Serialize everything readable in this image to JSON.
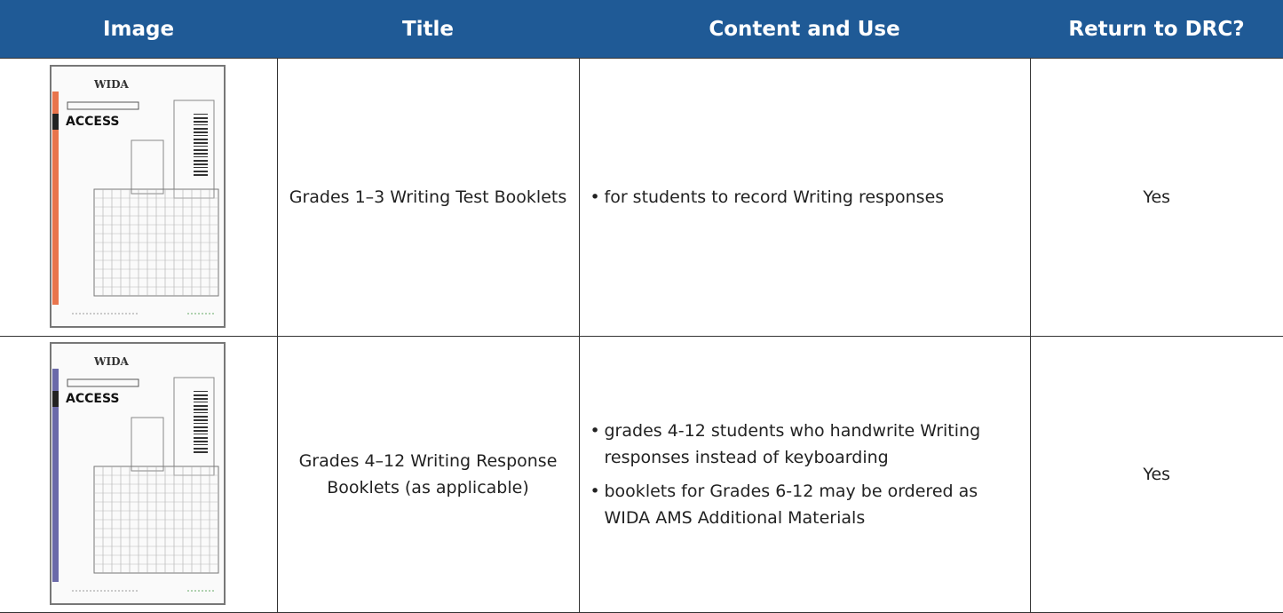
{
  "table": {
    "header": [
      "Image",
      "Title",
      "Content and Use",
      "Return to DRC?"
    ],
    "rows": [
      {
        "image": {
          "brand": "WIDA",
          "product": "ACCESS",
          "stripe_color": "#e8744c"
        },
        "title": "Grades 1–3 Writing Test Booklets",
        "content": [
          "for students to record Writing responses"
        ],
        "return": "Yes"
      },
      {
        "image": {
          "brand": "WIDA",
          "product": "ACCESS",
          "stripe_color": "#6b6aa9"
        },
        "title": "Grades 4–12 Writing Response Booklets (as applicable)",
        "content": [
          "grades 4-12 students who handwrite Writing responses instead of keyboarding",
          "booklets for Grades 6-12 may be ordered as WIDA AMS Additional Materials"
        ],
        "return": "Yes"
      }
    ]
  }
}
